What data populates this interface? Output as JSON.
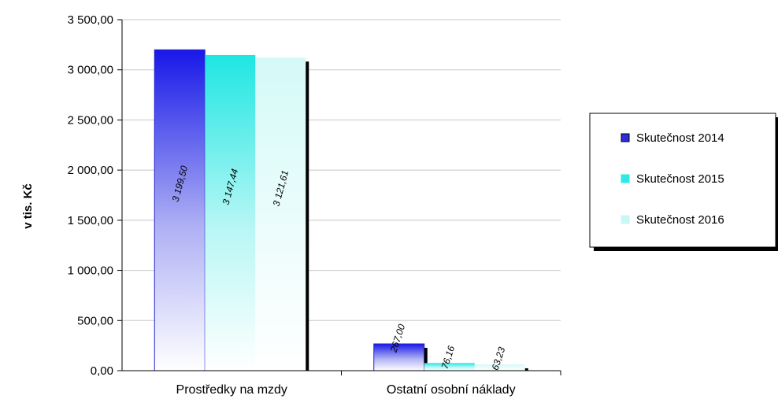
{
  "chart_data": {
    "type": "bar",
    "title": "",
    "xlabel": "",
    "ylabel": "v tis. Kč",
    "ylim": [
      0,
      3500
    ],
    "yticks": [
      "0,00",
      "500,00",
      "1 000,00",
      "1 500,00",
      "2 000,00",
      "2 500,00",
      "3 000,00",
      "3 500,00"
    ],
    "categories": [
      "Prostředky na mzdy",
      "Ostatní osobní náklady"
    ],
    "series": [
      {
        "name": "Skutečnost 2014",
        "values": [
          3199.5,
          267.0
        ],
        "labels": [
          "3 199,50",
          "267,00"
        ]
      },
      {
        "name": "Skutečnost 2015",
        "values": [
          3147.44,
          76.16
        ],
        "labels": [
          "3 147,44",
          "76,16"
        ]
      },
      {
        "name": "Skutečnost 2016",
        "values": [
          3121.61,
          63.23
        ],
        "labels": [
          "3 121,61",
          "63,23"
        ]
      }
    ],
    "grid": true,
    "legend_position": "right"
  },
  "colors": {
    "series": [
      "#2d2ddb",
      "#2ee9e5",
      "#c8f7f5"
    ],
    "grid": "#c8c8c8",
    "axis": "#000000"
  }
}
